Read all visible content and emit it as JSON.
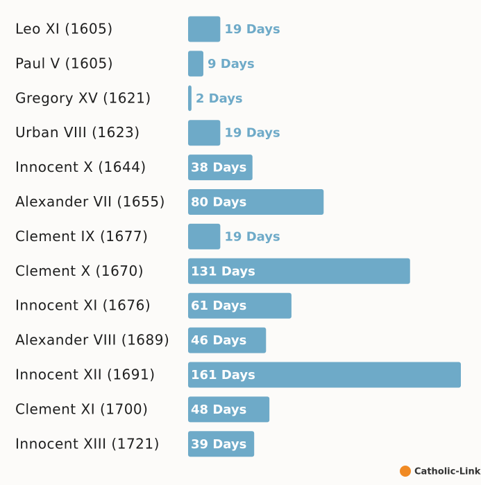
{
  "chart_data": {
    "type": "bar",
    "orientation": "horizontal",
    "categories": [
      "Leo XI (1605)",
      "Paul V (1605)",
      "Gregory XV (1621)",
      "Urban VIII (1623)",
      "Innocent X (1644)",
      "Alexander VII (1655)",
      "Clement IX (1677)",
      "Clement X (1670)",
      "Innocent XI (1676)",
      "Alexander VIII (1689)",
      "Innocent XII (1691)",
      "Clement XI (1700)",
      "Innocent XIII (1721)"
    ],
    "values": [
      19,
      9,
      2,
      19,
      38,
      80,
      19,
      131,
      61,
      46,
      161,
      48,
      39
    ],
    "value_labels": [
      "19 Days",
      "9 Days",
      "2 Days",
      "19 Days",
      "38 Days",
      "80 Days",
      "19 Days",
      "131 Days",
      "61 Days",
      "46 Days",
      "161 Days",
      "48 Days",
      "39 Days"
    ],
    "color": "#6eaac8",
    "source": "Catholic-Link"
  }
}
